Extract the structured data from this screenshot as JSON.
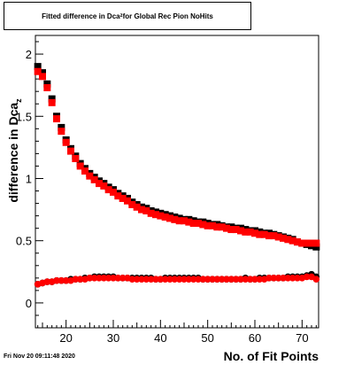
{
  "chart_data": {
    "type": "scatter",
    "title_main": "Fitted difference in Dca",
    "title_sub": "z",
    "title_rest": " for Global Rec Pion NoHits",
    "xlabel": "No. of Fit Points",
    "ylabel_main": "difference in Dca",
    "ylabel_sub": "z",
    "xlim": [
      13.5,
      73.5
    ],
    "ylim": [
      -0.2,
      2.15
    ],
    "x_ticks": [
      20,
      30,
      40,
      50,
      60,
      70
    ],
    "y_ticks": [
      0,
      0.5,
      1,
      1.5,
      2
    ],
    "y_tick_labels": [
      "0",
      "0.5",
      "1",
      "1.5",
      "2"
    ],
    "grid": false,
    "series": [
      {
        "color": "#000000",
        "marker": "square",
        "x": [
          14,
          15,
          16,
          17,
          18,
          19,
          20,
          21,
          22,
          23,
          24,
          25,
          26,
          27,
          28,
          29,
          30,
          31,
          32,
          33,
          34,
          35,
          36,
          37,
          38,
          39,
          40,
          41,
          42,
          43,
          44,
          45,
          46,
          47,
          48,
          49,
          50,
          51,
          52,
          53,
          54,
          55,
          56,
          57,
          58,
          59,
          60,
          61,
          62,
          63,
          64,
          65,
          66,
          67,
          68,
          69,
          70,
          71,
          72,
          73
        ],
        "values": [
          1.9,
          1.85,
          1.76,
          1.64,
          1.5,
          1.41,
          1.31,
          1.24,
          1.18,
          1.12,
          1.08,
          1.04,
          1.01,
          0.98,
          0.96,
          0.93,
          0.91,
          0.88,
          0.86,
          0.84,
          0.81,
          0.79,
          0.77,
          0.76,
          0.74,
          0.73,
          0.72,
          0.71,
          0.7,
          0.69,
          0.68,
          0.67,
          0.67,
          0.66,
          0.65,
          0.65,
          0.64,
          0.63,
          0.63,
          0.62,
          0.61,
          0.61,
          0.6,
          0.6,
          0.59,
          0.58,
          0.58,
          0.57,
          0.56,
          0.56,
          0.55,
          0.54,
          0.53,
          0.52,
          0.51,
          0.49,
          0.48,
          0.47,
          0.46,
          0.45
        ]
      },
      {
        "color": "#ff0000",
        "marker": "square",
        "x": [
          14,
          15,
          16,
          17,
          18,
          19,
          20,
          21,
          22,
          23,
          24,
          25,
          26,
          27,
          28,
          29,
          30,
          31,
          32,
          33,
          34,
          35,
          36,
          37,
          38,
          39,
          40,
          41,
          42,
          43,
          44,
          45,
          46,
          47,
          48,
          49,
          50,
          51,
          52,
          53,
          54,
          55,
          56,
          57,
          58,
          59,
          60,
          61,
          62,
          63,
          64,
          65,
          66,
          67,
          68,
          69,
          70,
          71,
          72,
          73
        ],
        "values": [
          1.86,
          1.82,
          1.73,
          1.61,
          1.48,
          1.38,
          1.29,
          1.22,
          1.16,
          1.1,
          1.06,
          1.02,
          0.99,
          0.96,
          0.94,
          0.91,
          0.89,
          0.86,
          0.84,
          0.82,
          0.79,
          0.77,
          0.75,
          0.74,
          0.72,
          0.71,
          0.7,
          0.69,
          0.68,
          0.67,
          0.66,
          0.66,
          0.65,
          0.64,
          0.64,
          0.63,
          0.62,
          0.62,
          0.61,
          0.61,
          0.6,
          0.59,
          0.59,
          0.58,
          0.57,
          0.57,
          0.56,
          0.55,
          0.55,
          0.54,
          0.54,
          0.53,
          0.52,
          0.51,
          0.5,
          0.49,
          0.48,
          0.48,
          0.48,
          0.48
        ]
      },
      {
        "color": "#000000",
        "marker": "circle",
        "x": [
          14,
          15,
          16,
          17,
          18,
          19,
          20,
          21,
          22,
          23,
          24,
          25,
          26,
          27,
          28,
          29,
          30,
          31,
          32,
          33,
          34,
          35,
          36,
          37,
          38,
          39,
          40,
          41,
          42,
          43,
          44,
          45,
          46,
          47,
          48,
          49,
          50,
          51,
          52,
          53,
          54,
          55,
          56,
          57,
          58,
          59,
          60,
          61,
          62,
          63,
          64,
          65,
          66,
          67,
          68,
          69,
          70,
          71,
          72,
          73
        ],
        "values": [
          0.15,
          0.16,
          0.17,
          0.17,
          0.18,
          0.18,
          0.18,
          0.19,
          0.19,
          0.19,
          0.2,
          0.2,
          0.21,
          0.21,
          0.21,
          0.21,
          0.21,
          0.2,
          0.2,
          0.2,
          0.2,
          0.2,
          0.2,
          0.2,
          0.2,
          0.19,
          0.19,
          0.2,
          0.2,
          0.2,
          0.2,
          0.2,
          0.2,
          0.2,
          0.2,
          0.19,
          0.19,
          0.19,
          0.19,
          0.19,
          0.19,
          0.19,
          0.19,
          0.19,
          0.2,
          0.19,
          0.19,
          0.2,
          0.2,
          0.2,
          0.2,
          0.2,
          0.2,
          0.21,
          0.21,
          0.21,
          0.21,
          0.22,
          0.23,
          0.21
        ]
      },
      {
        "color": "#ff0000",
        "marker": "circle",
        "x": [
          14,
          15,
          16,
          17,
          18,
          19,
          20,
          21,
          22,
          23,
          24,
          25,
          26,
          27,
          28,
          29,
          30,
          31,
          32,
          33,
          34,
          35,
          36,
          37,
          38,
          39,
          40,
          41,
          42,
          43,
          44,
          45,
          46,
          47,
          48,
          49,
          50,
          51,
          52,
          53,
          54,
          55,
          56,
          57,
          58,
          59,
          60,
          61,
          62,
          63,
          64,
          65,
          66,
          67,
          68,
          69,
          70,
          71,
          72,
          73
        ],
        "values": [
          0.15,
          0.16,
          0.17,
          0.17,
          0.18,
          0.18,
          0.18,
          0.18,
          0.19,
          0.19,
          0.19,
          0.2,
          0.2,
          0.2,
          0.2,
          0.2,
          0.2,
          0.2,
          0.2,
          0.2,
          0.19,
          0.19,
          0.19,
          0.19,
          0.19,
          0.19,
          0.19,
          0.19,
          0.19,
          0.19,
          0.19,
          0.19,
          0.19,
          0.19,
          0.19,
          0.19,
          0.19,
          0.19,
          0.19,
          0.19,
          0.19,
          0.19,
          0.19,
          0.19,
          0.19,
          0.19,
          0.19,
          0.19,
          0.19,
          0.2,
          0.2,
          0.2,
          0.2,
          0.2,
          0.2,
          0.2,
          0.2,
          0.21,
          0.21,
          0.19
        ]
      }
    ]
  },
  "datestamp": "Fri Nov 20 09:11:48 2020"
}
